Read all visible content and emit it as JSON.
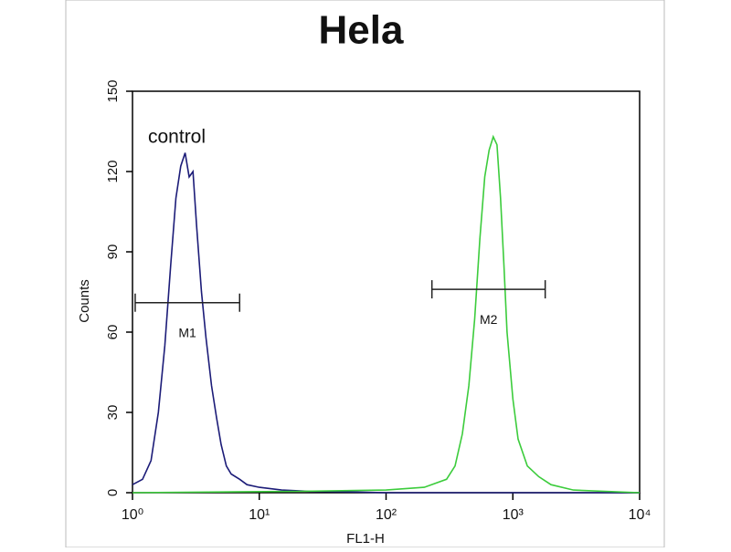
{
  "chart_data": {
    "type": "line",
    "title": "Hela",
    "x_label": "FL1-H",
    "y_label": "Counts",
    "xscale": "log",
    "xlim": [
      1,
      10000
    ],
    "ylim": [
      0,
      150
    ],
    "xticks": [
      {
        "value": 1,
        "label": "10⁰"
      },
      {
        "value": 10,
        "label": "10¹"
      },
      {
        "value": 100,
        "label": "10²"
      },
      {
        "value": 1000,
        "label": "10³"
      },
      {
        "value": 10000,
        "label": "10⁴"
      }
    ],
    "yticks": [
      0,
      30,
      60,
      90,
      120,
      150
    ],
    "series": [
      {
        "name": "control",
        "color": "#1c1c78",
        "x": [
          1.0,
          1.2,
          1.4,
          1.6,
          1.8,
          2.0,
          2.2,
          2.4,
          2.6,
          2.8,
          3.0,
          3.2,
          3.5,
          3.8,
          4.2,
          4.6,
          5.0,
          5.5,
          6.0,
          7.0,
          8.0,
          10,
          15,
          25,
          50,
          100,
          10000
        ],
        "values": [
          3,
          5,
          12,
          30,
          55,
          85,
          110,
          122,
          127,
          118,
          120,
          100,
          75,
          58,
          40,
          28,
          18,
          10,
          7,
          5,
          3,
          2,
          1,
          0.5,
          0.3,
          0,
          0
        ]
      },
      {
        "color": "#3ccc3c",
        "x": [
          1,
          20,
          100,
          200,
          300,
          350,
          400,
          450,
          500,
          550,
          600,
          650,
          700,
          750,
          800,
          850,
          900,
          1000,
          1100,
          1300,
          1600,
          2000,
          3000,
          10000
        ],
        "values": [
          0,
          0.5,
          1,
          2,
          5,
          10,
          22,
          40,
          65,
          95,
          118,
          128,
          133,
          130,
          110,
          85,
          60,
          35,
          20,
          10,
          6,
          3,
          1,
          0
        ]
      }
    ],
    "gates": [
      {
        "label": "M1",
        "x": [
          1.05,
          7
        ],
        "y": 71
      },
      {
        "label": "M2",
        "x": [
          230,
          1800
        ],
        "y": 76
      }
    ]
  }
}
